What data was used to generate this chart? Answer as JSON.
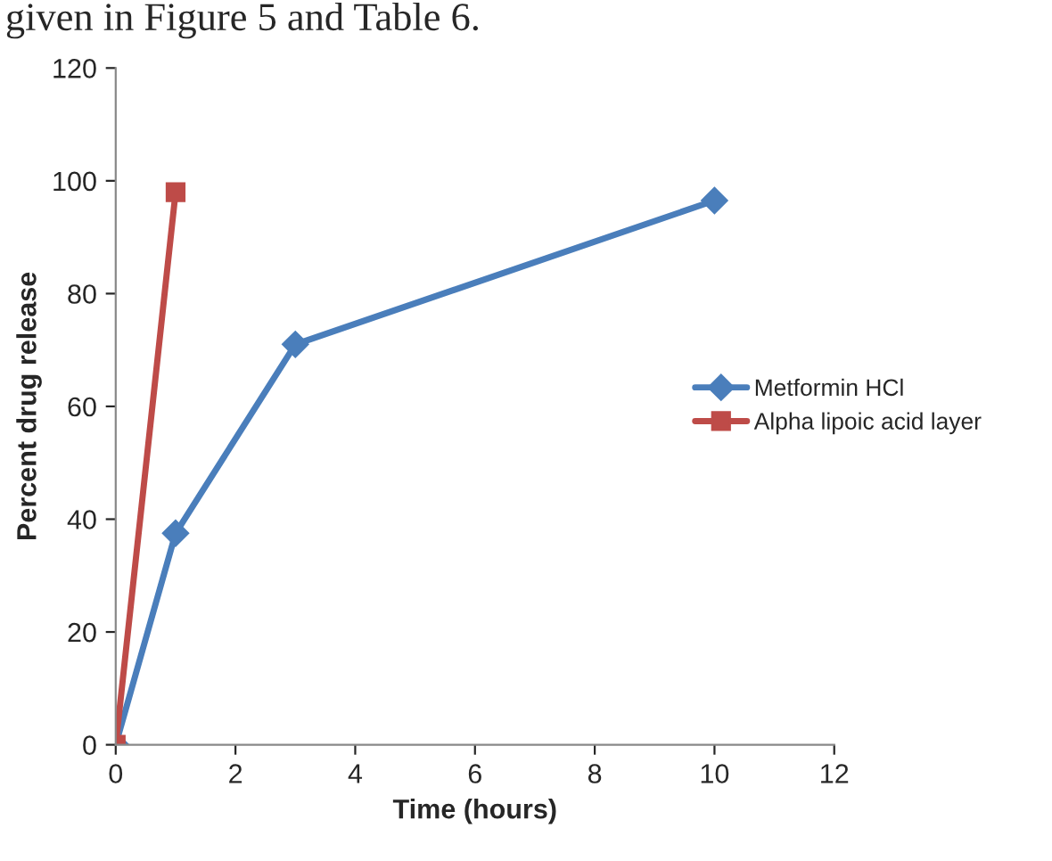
{
  "chart_data": {
    "type": "line",
    "xlabel": "Time (hours)",
    "ylabel": "Percent drug release",
    "annotations": [
      "given in Figure 5 and Table 6."
    ],
    "xlim": [
      0,
      12
    ],
    "xticks": [
      0,
      2,
      4,
      6,
      8,
      10,
      12
    ],
    "ylim": [
      0,
      120
    ],
    "yticks": [
      0,
      20,
      40,
      60,
      80,
      100,
      120
    ],
    "legend": "right",
    "series": [
      {
        "name": "Metformin HCl",
        "color": "#4a7ebb",
        "marker": "diamond",
        "x": [
          0,
          1,
          3,
          10
        ],
        "values": [
          0,
          37.5,
          71,
          96.5
        ]
      },
      {
        "name": "Alpha lipoic acid layer",
        "color": "#be4b48",
        "marker": "square",
        "x": [
          0,
          1
        ],
        "values": [
          0,
          98
        ]
      }
    ]
  }
}
